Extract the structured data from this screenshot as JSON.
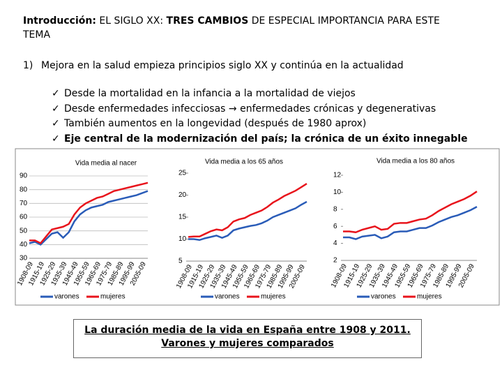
{
  "header": {
    "title_parts": [
      "Introducción:",
      "EL SIGLO XX:",
      "TRES CAMBIOS",
      "DE ESPECIAL IMPORTANCIA PARA ESTE TEMA"
    ]
  },
  "point": {
    "number": "1)",
    "text": "Mejora en la salud empieza principios siglo XX y continúa en la actualidad"
  },
  "bullets": [
    "Desde la mortalidad en la infancia a la mortalidad de viejos",
    "Desde enfermedades infecciosas → enfermedades crónicas y degenerativas",
    "También aumentos en la longevidad (después de 1980 aprox)",
    "Eje central de la modernización del país; la crónica de un éxito innegable"
  ],
  "caption": [
    "La duración media de la vida en España entre 1908 y 2011.",
    "Varones y mujeres comparados"
  ],
  "chart_data": [
    {
      "type": "line",
      "title": "Vida media al nacer",
      "categories": [
        "1908-09",
        null,
        "1915-19",
        null,
        "1925-29",
        null,
        "1935-39",
        null,
        "1945-49",
        null,
        "1955-59",
        null,
        "1965-69",
        null,
        "1975-79",
        null,
        "1985-89",
        null,
        "1995-99",
        null,
        "2005-09",
        null
      ],
      "ylim": [
        30,
        90
      ],
      "yticks": [
        30,
        40,
        50,
        60,
        70,
        80,
        90
      ],
      "grid": true,
      "series": [
        {
          "name": "varones",
          "color": "#2a5cb8",
          "values": [
            41,
            42,
            40,
            44,
            48,
            49,
            45,
            49,
            57,
            62,
            65,
            67,
            68,
            69,
            71,
            72,
            73,
            74,
            75,
            76,
            77.5,
            79
          ]
        },
        {
          "name": "mujeres",
          "color": "#e8141c",
          "values": [
            43,
            43,
            41,
            46,
            51,
            52,
            53,
            55,
            62,
            67,
            70,
            72,
            74,
            75,
            77,
            79,
            80,
            81,
            82,
            83,
            84,
            85
          ]
        }
      ]
    },
    {
      "type": "line",
      "title": "Vida media a los 65 años",
      "categories": [
        "1908-09",
        null,
        "1915-19",
        null,
        "1925-29",
        null,
        "1935-39",
        null,
        "1945-49",
        null,
        "1955-59",
        null,
        "1965-69",
        null,
        "1975-79",
        null,
        "1985-89",
        null,
        "1995-99",
        null,
        "2005-09",
        null
      ],
      "ylim": [
        5,
        25
      ],
      "yticks": [
        5,
        10,
        15,
        20,
        25
      ],
      "grid": false,
      "series": [
        {
          "name": "varones",
          "color": "#2a5cb8",
          "values": [
            10,
            10,
            9.8,
            10.2,
            10.5,
            10.8,
            10.3,
            10.8,
            12,
            12.4,
            12.7,
            13,
            13.2,
            13.6,
            14.2,
            15,
            15.5,
            16,
            16.5,
            17,
            17.8,
            18.5
          ]
        },
        {
          "name": "mujeres",
          "color": "#e8141c",
          "values": [
            10.5,
            10.6,
            10.6,
            11.2,
            11.8,
            12.2,
            12,
            12.7,
            14,
            14.5,
            14.8,
            15.5,
            16,
            16.5,
            17.3,
            18.3,
            19,
            19.8,
            20.4,
            21,
            21.8,
            22.6
          ]
        }
      ]
    },
    {
      "type": "line",
      "title": "Vida media a los 80 años",
      "categories": [
        "1908-09",
        null,
        "1915-19",
        null,
        "1925-29",
        null,
        "1935-39",
        null,
        "1945-49",
        null,
        "1955-59",
        null,
        "1965-69",
        null,
        "1975-79",
        null,
        "1985-89",
        null,
        "1995-99",
        null,
        "2005-09",
        null
      ],
      "ylim": [
        2,
        12
      ],
      "yticks": [
        2,
        4,
        6,
        8,
        10,
        12
      ],
      "grid": false,
      "series": [
        {
          "name": "varones",
          "color": "#2a5cb8",
          "values": [
            4.7,
            4.7,
            4.5,
            4.8,
            4.9,
            5,
            4.6,
            4.8,
            5.3,
            5.4,
            5.4,
            5.6,
            5.8,
            5.8,
            6.1,
            6.5,
            6.8,
            7.1,
            7.3,
            7.6,
            7.9,
            8.3
          ]
        },
        {
          "name": "mujeres",
          "color": "#e8141c",
          "values": [
            5.4,
            5.4,
            5.3,
            5.6,
            5.8,
            6,
            5.6,
            5.7,
            6.3,
            6.4,
            6.4,
            6.6,
            6.8,
            6.9,
            7.3,
            7.8,
            8.2,
            8.6,
            8.9,
            9.2,
            9.6,
            10.1
          ]
        }
      ]
    }
  ]
}
